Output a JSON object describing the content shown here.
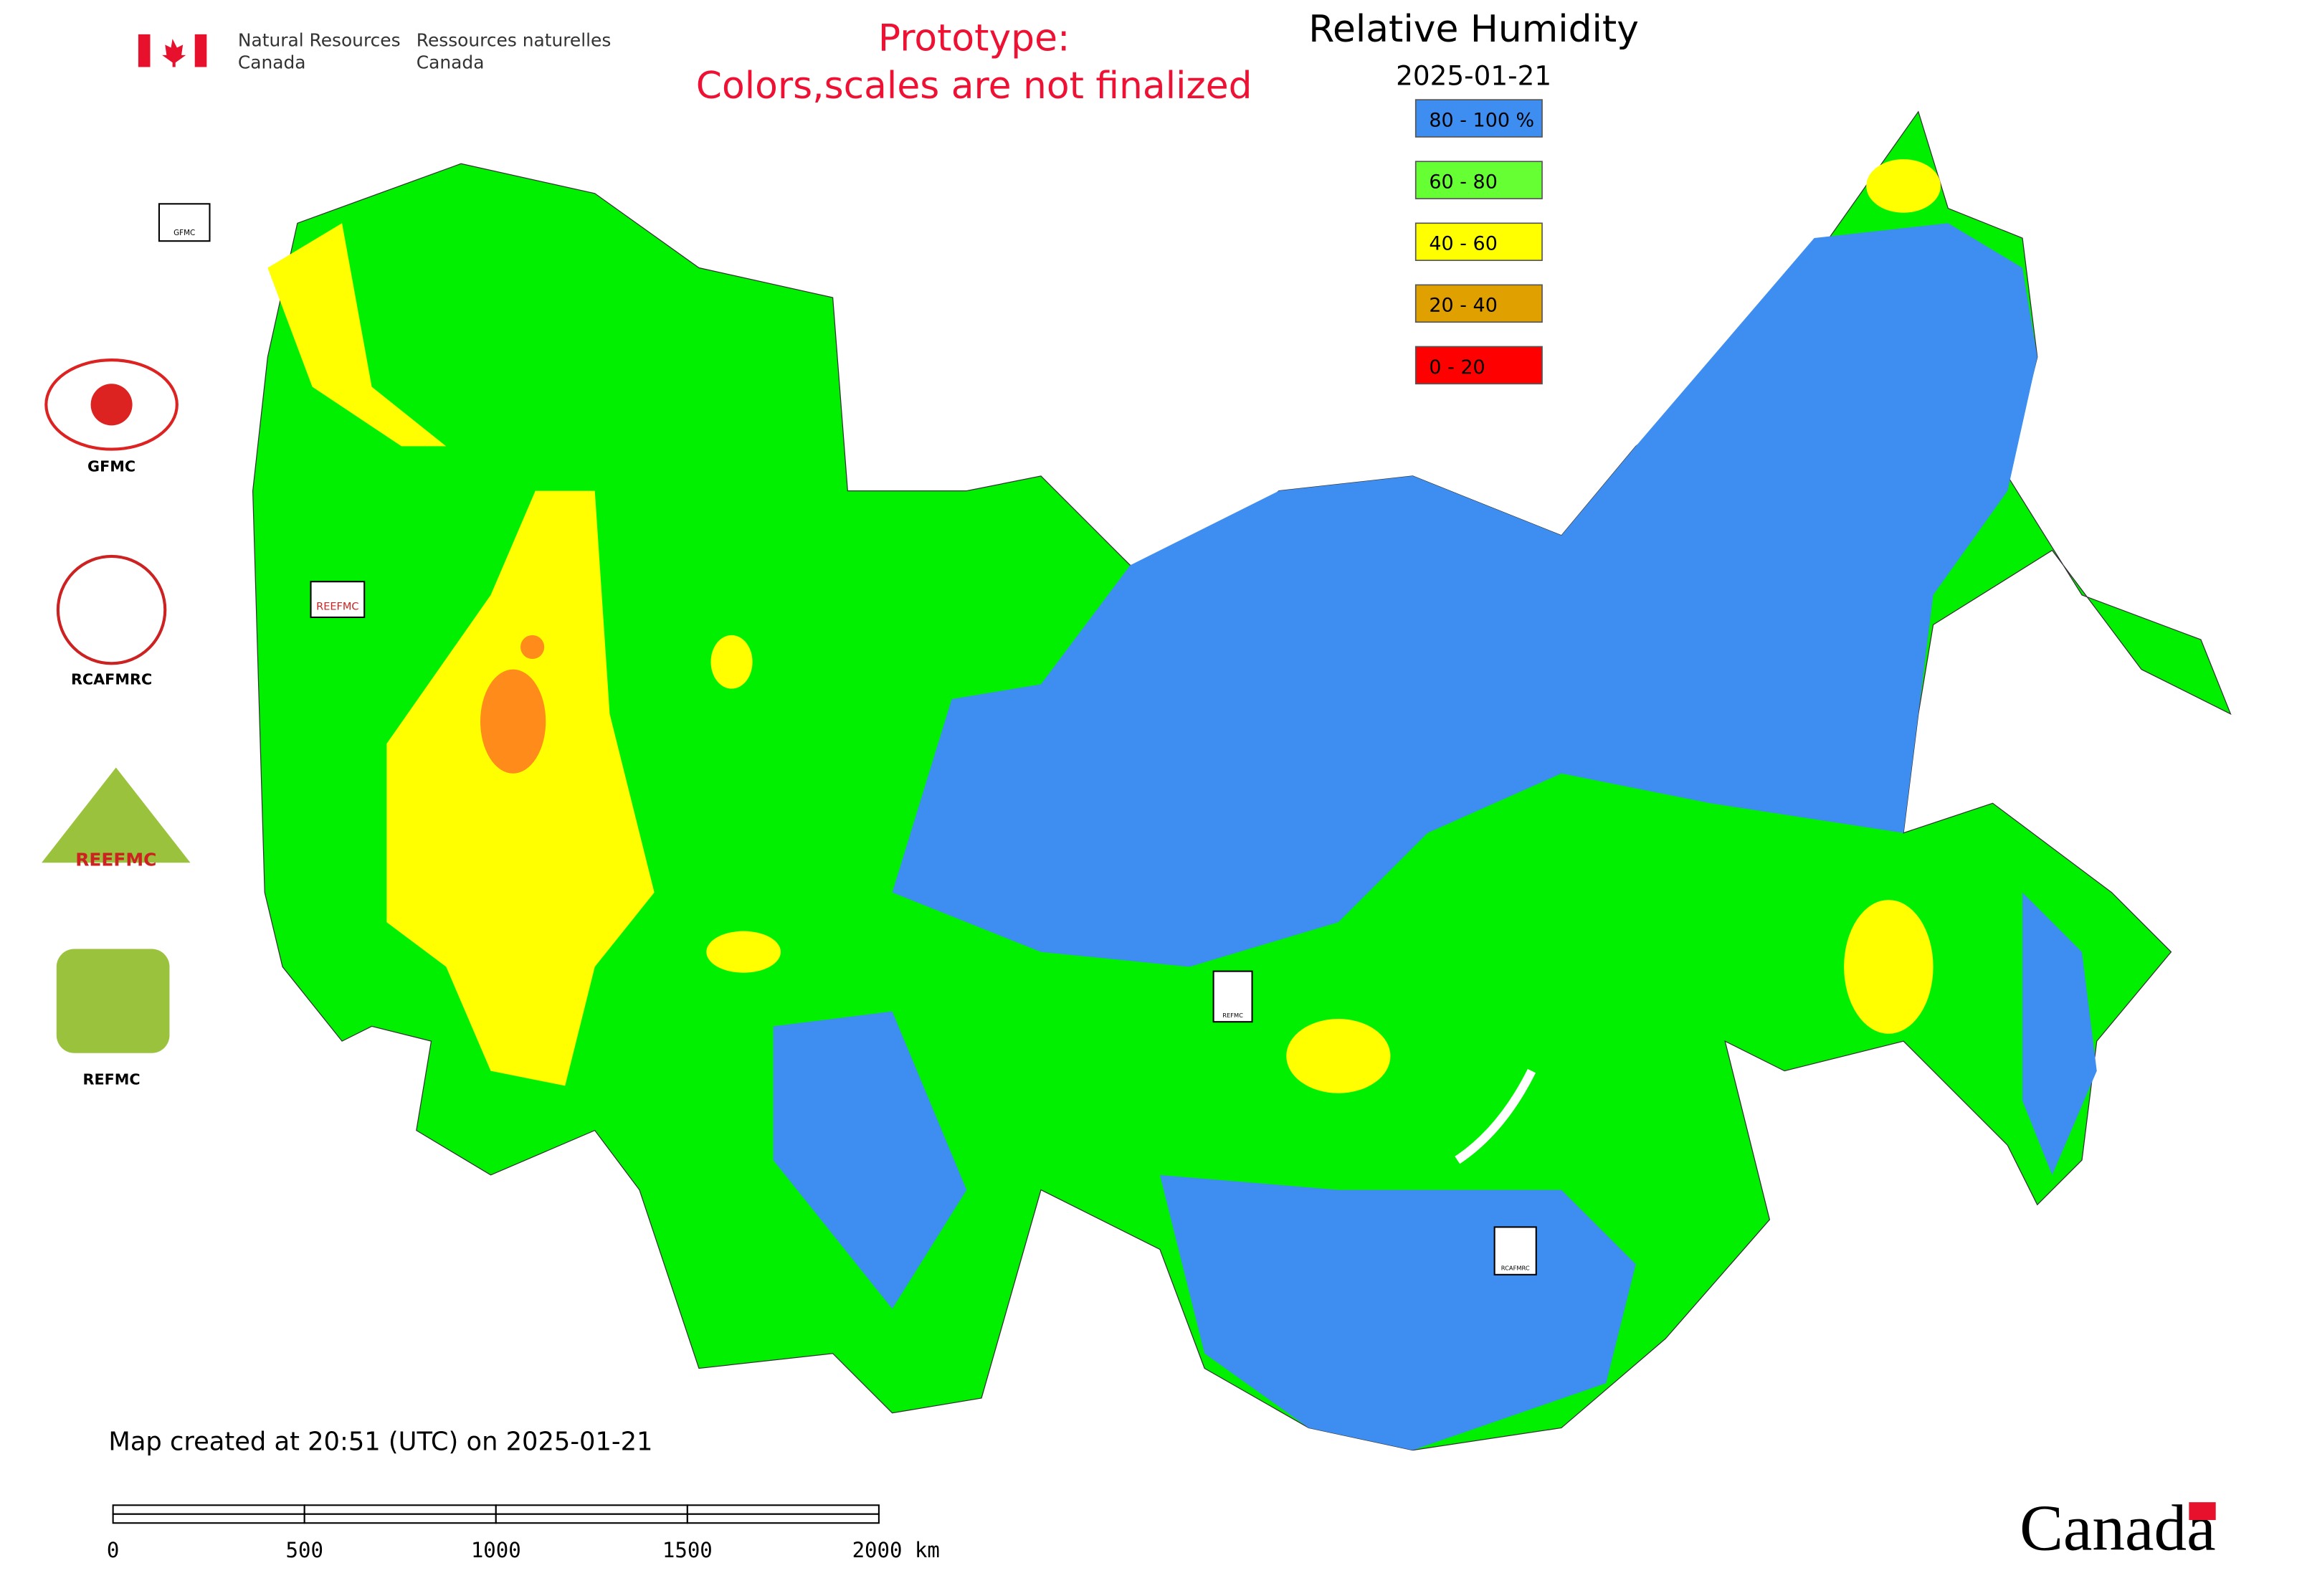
{
  "header": {
    "agency_en": [
      "Natural Resources",
      "Canada"
    ],
    "agency_fr": [
      "Ressources naturelles",
      "Canada"
    ]
  },
  "notice": [
    "Prototype:",
    "Colors,scales are not finalized"
  ],
  "legend": {
    "title": "Relative Humidity",
    "date": "2025-01-21",
    "items": [
      {
        "label": "80 - 100 %",
        "color": "#3d8ef0"
      },
      {
        "label": "60 - 80",
        "color": "#66ff33"
      },
      {
        "label": "40 - 60",
        "color": "#ffff00"
      },
      {
        "label": "20 - 40",
        "color": "#e0a000"
      },
      {
        "label": "0 - 20",
        "color": "#ff0000"
      }
    ]
  },
  "logos": [
    "GFMC",
    "RCAFMRC",
    "REEFMC",
    "REFMC"
  ],
  "markers": [
    "GFMC",
    "REEFMC",
    "REFMC",
    "RCAFMRC"
  ],
  "footer": {
    "created": "Map created at 20:51 (UTC) on 2025-01-21",
    "scale": [
      "0",
      "500",
      "1000",
      "1500",
      "2000 km"
    ],
    "wordmark": "Canada"
  }
}
